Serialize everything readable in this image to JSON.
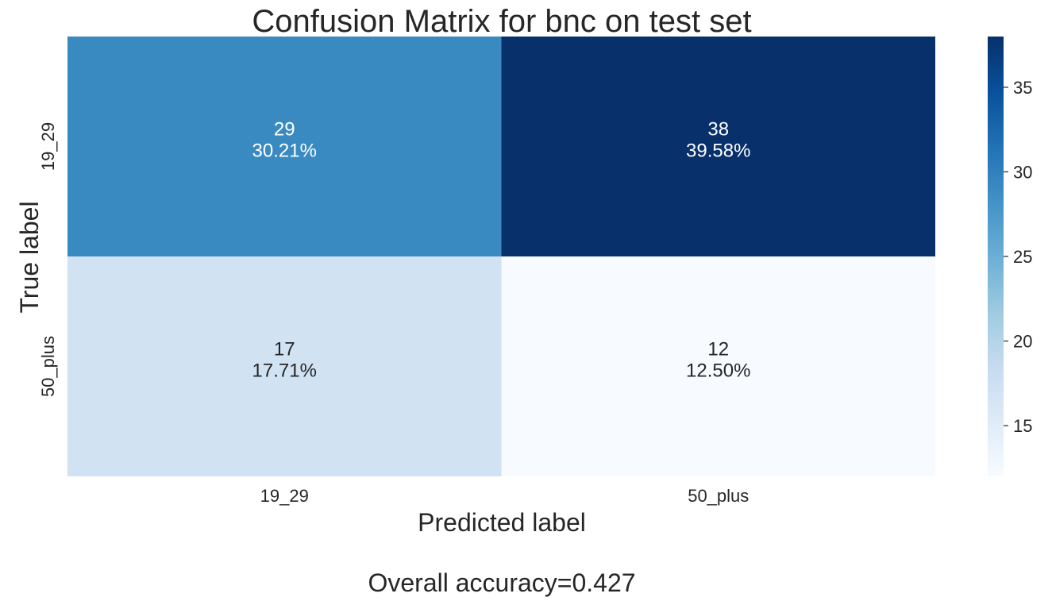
{
  "chart_data": {
    "type": "heatmap",
    "title": "Confusion Matrix for bnc on test set",
    "xlabel": "Predicted label",
    "ylabel": "True label",
    "x_categories": [
      "19_29",
      "50_plus"
    ],
    "y_categories": [
      "19_29",
      "50_plus"
    ],
    "values": [
      [
        29,
        38
      ],
      [
        17,
        12
      ]
    ],
    "percent_labels": [
      [
        "30.21%",
        "39.58%"
      ],
      [
        "17.71%",
        "12.50%"
      ]
    ],
    "colorbar": {
      "range": [
        12,
        38
      ],
      "ticks": [
        15,
        20,
        25,
        30,
        35
      ],
      "colormap": "Blues"
    },
    "footer": "Overall accuracy=0.427"
  }
}
